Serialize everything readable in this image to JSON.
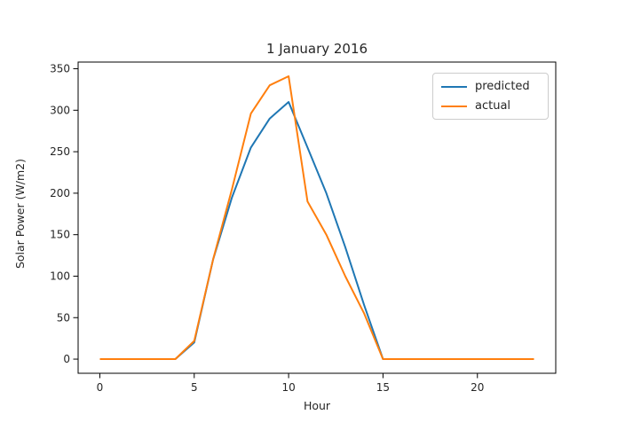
{
  "chart_data": {
    "type": "line",
    "title": "1 January 2016",
    "xlabel": "Hour",
    "ylabel": "Solar Power (W/m2)",
    "x": [
      0,
      1,
      2,
      3,
      4,
      5,
      6,
      7,
      8,
      9,
      10,
      11,
      12,
      13,
      14,
      15,
      16,
      17,
      18,
      19,
      20,
      21,
      22,
      23
    ],
    "series": [
      {
        "name": "predicted",
        "color": "#1f77b4",
        "values": [
          0,
          0,
          0,
          0,
          0,
          20,
          120,
          195,
          255,
          290,
          310,
          255,
          200,
          135,
          65,
          0,
          0,
          0,
          0,
          0,
          0,
          0,
          0,
          0
        ]
      },
      {
        "name": "actual",
        "color": "#ff7f0e",
        "values": [
          0,
          0,
          0,
          0,
          0,
          22,
          120,
          205,
          296,
          330,
          341,
          190,
          150,
          100,
          55,
          0,
          0,
          0,
          0,
          0,
          0,
          0,
          0,
          0
        ]
      }
    ],
    "xticks": [
      0,
      5,
      10,
      15,
      20
    ],
    "yticks": [
      0,
      50,
      100,
      150,
      200,
      250,
      300,
      350
    ],
    "xlim": [
      -1.15,
      24.15
    ],
    "ylim": [
      -17.05,
      358.05
    ],
    "grid": false,
    "legend_position": "upper right"
  }
}
